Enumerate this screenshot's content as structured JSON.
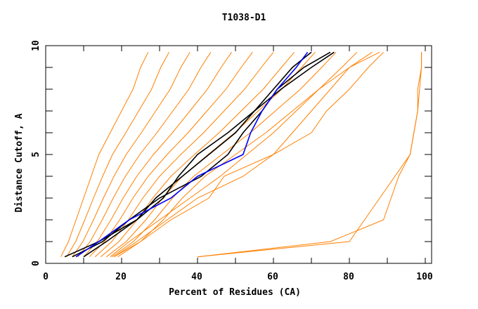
{
  "chart_data": {
    "type": "line",
    "title": "T1038-D1",
    "xlabel": "Percent of Residues (CA)",
    "ylabel": "Distance Cutoff, A",
    "xlim": [
      0,
      100
    ],
    "ylim": [
      0,
      10
    ],
    "x_ticks": [
      "0",
      "20",
      "40",
      "60",
      "80",
      "100"
    ],
    "y_ticks": [
      "0",
      "5",
      "10"
    ],
    "grid": false,
    "legend": "none",
    "colors": {
      "models": "#ff8000",
      "highlight_black": "#000000",
      "highlight_blue": "#0000ff"
    },
    "cutoffs": [
      0.3,
      1,
      2,
      3,
      4,
      5,
      6,
      7,
      8,
      9,
      9.7
    ],
    "series": [
      {
        "color": "#ff8000",
        "x": [
          4,
          6,
          8,
          10,
          12,
          14,
          17,
          20,
          23,
          25,
          27
        ]
      },
      {
        "color": "#ff8000",
        "x": [
          5.5,
          7.9,
          10.3,
          12.6,
          15,
          17.6,
          21.1,
          24.5,
          27.9,
          30.3,
          32.5
        ]
      },
      {
        "color": "#ff8000",
        "x": [
          7,
          9.8,
          12.6,
          15.2,
          18,
          21.2,
          25.2,
          29,
          32.8,
          35.6,
          38
        ]
      },
      {
        "color": "#ff8000",
        "x": [
          8.5,
          11.7,
          14.9,
          17.8,
          21,
          24.8,
          29.3,
          33.5,
          37.7,
          40.9,
          43.5
        ]
      },
      {
        "color": "#ff8000",
        "x": [
          10,
          13.6,
          17.2,
          20.4,
          24,
          28.4,
          33.4,
          38,
          42.6,
          46.2,
          49
        ]
      },
      {
        "color": "#ff8000",
        "x": [
          11.5,
          15.5,
          19.5,
          23,
          27,
          32,
          37.5,
          42.5,
          47.5,
          51.5,
          54.5
        ]
      },
      {
        "color": "#ff8000",
        "x": [
          13,
          17.4,
          21.8,
          25.6,
          30,
          35.6,
          41.6,
          47,
          52.4,
          56.8,
          60
        ]
      },
      {
        "color": "#ff8000",
        "x": [
          14.5,
          19.3,
          24.1,
          28.2,
          33,
          39.2,
          45.7,
          51.5,
          57.3,
          62.1,
          65.5
        ]
      },
      {
        "color": "#ff8000",
        "x": [
          16,
          21.2,
          26.4,
          30.8,
          36,
          42.8,
          49.8,
          56,
          62.2,
          67.4,
          71
        ]
      },
      {
        "color": "#ff8000",
        "x": [
          17.5,
          23.1,
          28.7,
          33.4,
          39,
          46.4,
          53.9,
          60.5,
          67.1,
          72.7,
          76.5
        ]
      },
      {
        "color": "#ff8000",
        "x": [
          19,
          25,
          31,
          36,
          42,
          50,
          58,
          65,
          72,
          78,
          82
        ]
      },
      {
        "color": "#ff8000",
        "x": [
          17,
          22,
          30,
          38,
          46,
          53,
          60,
          66,
          72,
          80,
          88
        ]
      },
      {
        "color": "#ff8000",
        "x": [
          18,
          24,
          32,
          40,
          52,
          60,
          65,
          70,
          75,
          80,
          86
        ]
      },
      {
        "color": "#ff8000",
        "x": [
          18,
          25,
          33,
          43,
          47,
          60,
          70,
          74,
          80,
          85,
          89
        ]
      },
      {
        "color": "#ff8000",
        "x": [
          40,
          75,
          89,
          91,
          93,
          96,
          97,
          98,
          98.5,
          99,
          99
        ]
      },
      {
        "color": "#ff8000",
        "x": [
          40,
          80,
          84,
          88,
          92,
          96,
          97,
          98,
          98,
          99,
          99
        ]
      },
      {
        "color": "#000000",
        "x": [
          5,
          14,
          24,
          29,
          36,
          43,
          50,
          55,
          62,
          70,
          76
        ]
      },
      {
        "color": "#000000",
        "x": [
          10,
          16,
          24,
          31,
          35,
          40,
          48,
          55,
          60,
          65,
          70
        ]
      },
      {
        "color": "#000000",
        "x": [
          7,
          15,
          22,
          30,
          41,
          48,
          52,
          57,
          61,
          68,
          75
        ]
      },
      {
        "color": "#0000ff",
        "x": [
          8,
          14,
          22,
          33,
          40,
          52,
          54,
          57,
          61,
          66,
          69
        ]
      }
    ]
  }
}
